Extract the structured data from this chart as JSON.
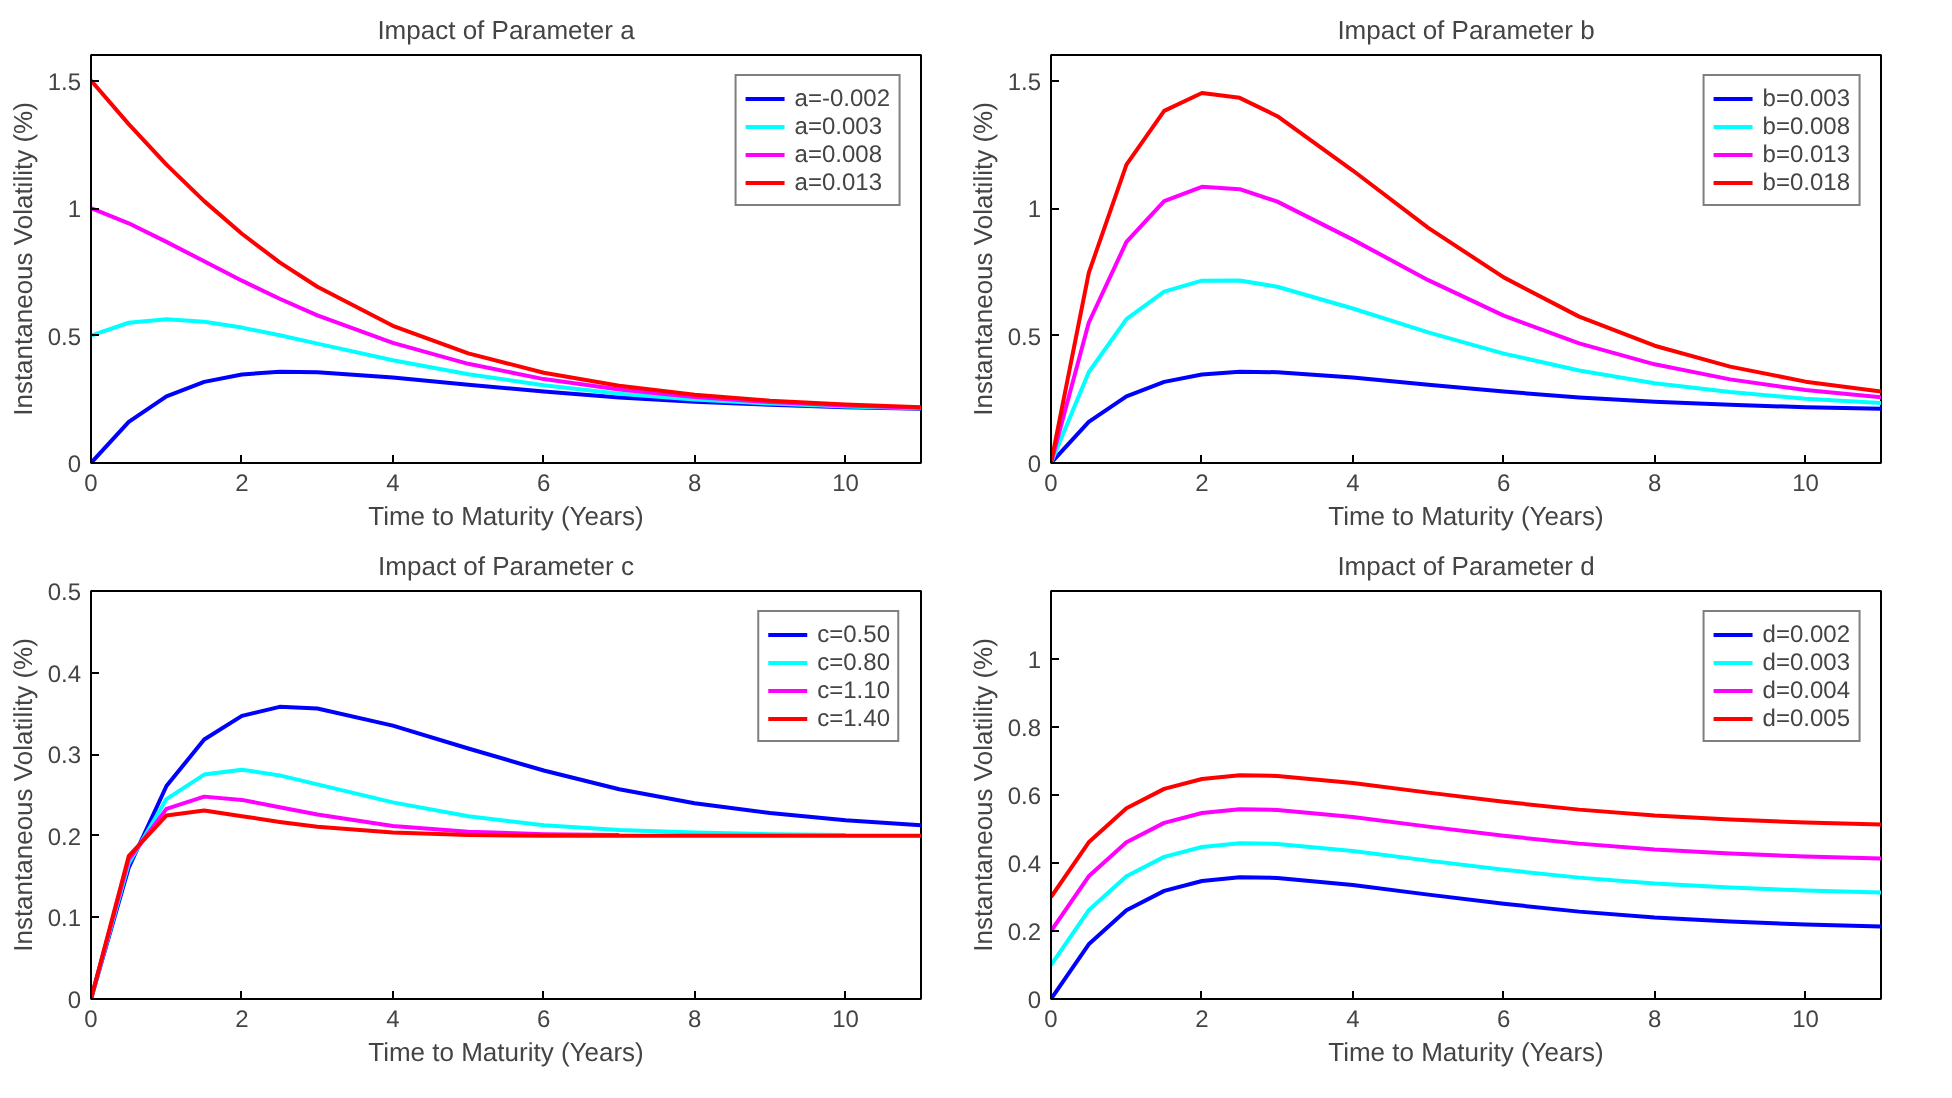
{
  "chart_data": [
    {
      "type": "line",
      "title": "Impact of Parameter a",
      "xlabel": "Time to Maturity (Years)",
      "ylabel": "Instantaneous Volatility (%)",
      "x": [
        0,
        0.5,
        1,
        1.5,
        2,
        2.5,
        3,
        4,
        5,
        6,
        7,
        8,
        9,
        10,
        11
      ],
      "xlim": [
        0,
        11
      ],
      "xticks": [
        0,
        2,
        4,
        6,
        8,
        10
      ],
      "ylim": [
        0,
        1.6
      ],
      "yticks": [
        0,
        0.5,
        1,
        1.5
      ],
      "legend": "top right",
      "series": [
        {
          "name": "a=-0.002",
          "color": "#0000ff",
          "values": [
            0,
            0.161,
            0.261,
            0.318,
            0.347,
            0.358,
            0.356,
            0.335,
            0.307,
            0.28,
            0.257,
            0.24,
            0.228,
            0.219,
            0.213
          ]
        },
        {
          "name": "a=0.003",
          "color": "#00ffff",
          "values": [
            0.5,
            0.55,
            0.564,
            0.554,
            0.531,
            0.501,
            0.468,
            0.403,
            0.348,
            0.305,
            0.272,
            0.249,
            0.233,
            0.222,
            0.215
          ]
        },
        {
          "name": "a=0.008",
          "color": "#ff00ff",
          "values": [
            1.0,
            0.94,
            0.867,
            0.791,
            0.715,
            0.644,
            0.579,
            0.471,
            0.389,
            0.329,
            0.288,
            0.259,
            0.239,
            0.225,
            0.217
          ]
        },
        {
          "name": "a=0.013",
          "color": "#ff0000",
          "values": [
            1.5,
            1.329,
            1.17,
            1.027,
            0.899,
            0.787,
            0.691,
            0.538,
            0.43,
            0.354,
            0.303,
            0.268,
            0.244,
            0.229,
            0.219
          ]
        }
      ]
    },
    {
      "type": "line",
      "title": "Impact of Parameter b",
      "xlabel": "Time to Maturity (Years)",
      "ylabel": "Instantaneous Volatility (%)",
      "x": [
        0,
        0.5,
        1,
        1.5,
        2,
        2.5,
        3,
        4,
        5,
        6,
        7,
        8,
        9,
        10,
        11
      ],
      "xlim": [
        0,
        11
      ],
      "xticks": [
        0,
        2,
        4,
        6,
        8,
        10
      ],
      "ylim": [
        0,
        1.6
      ],
      "yticks": [
        0,
        0.5,
        1,
        1.5
      ],
      "legend": "top right",
      "series": [
        {
          "name": "b=0.003",
          "color": "#0000ff",
          "values": [
            0,
            0.161,
            0.261,
            0.318,
            0.347,
            0.358,
            0.356,
            0.335,
            0.307,
            0.28,
            0.257,
            0.24,
            0.228,
            0.219,
            0.213
          ]
        },
        {
          "name": "b=0.008",
          "color": "#00ffff",
          "values": [
            0,
            0.356,
            0.564,
            0.672,
            0.715,
            0.716,
            0.691,
            0.606,
            0.512,
            0.429,
            0.363,
            0.313,
            0.278,
            0.252,
            0.235
          ]
        },
        {
          "name": "b=0.013",
          "color": "#ff00ff",
          "values": [
            0,
            0.55,
            0.867,
            1.027,
            1.083,
            1.074,
            1.025,
            0.876,
            0.717,
            0.578,
            0.469,
            0.387,
            0.328,
            0.286,
            0.258
          ]
        },
        {
          "name": "b=0.018",
          "color": "#ff0000",
          "values": [
            0,
            0.745,
            1.17,
            1.381,
            1.451,
            1.432,
            1.36,
            1.147,
            0.922,
            0.728,
            0.574,
            0.46,
            0.378,
            0.319,
            0.28
          ]
        }
      ]
    },
    {
      "type": "line",
      "title": "Impact of Parameter c",
      "xlabel": "Time to Maturity (Years)",
      "ylabel": "Instantaneous Volatility (%)",
      "x": [
        0,
        0.5,
        1,
        1.5,
        2,
        2.5,
        3,
        4,
        5,
        6,
        7,
        8,
        9,
        10,
        11
      ],
      "xlim": [
        0,
        11
      ],
      "xticks": [
        0,
        2,
        4,
        6,
        8,
        10
      ],
      "ylim": [
        0,
        0.5
      ],
      "yticks": [
        0,
        0.1,
        0.2,
        0.3,
        0.4,
        0.5
      ],
      "legend": "top right",
      "series": [
        {
          "name": "c=0.50",
          "color": "#0000ff",
          "values": [
            0,
            0.161,
            0.261,
            0.318,
            0.347,
            0.358,
            0.356,
            0.335,
            0.307,
            0.28,
            0.257,
            0.24,
            0.228,
            0.219,
            0.213
          ]
        },
        {
          "name": "c=0.80",
          "color": "#00ffff",
          "values": [
            0,
            0.166,
            0.245,
            0.275,
            0.281,
            0.274,
            0.263,
            0.241,
            0.224,
            0.213,
            0.207,
            0.204,
            0.202,
            0.201,
            null
          ]
        },
        {
          "name": "c=1.10",
          "color": "#ff00ff",
          "values": [
            0,
            0.171,
            0.233,
            0.248,
            0.244,
            0.235,
            0.226,
            0.212,
            0.205,
            0.202,
            0.201,
            null,
            null,
            null,
            null
          ]
        },
        {
          "name": "c=1.40",
          "color": "#ff0000",
          "values": [
            0,
            0.175,
            0.225,
            0.231,
            0.224,
            0.217,
            0.211,
            0.204,
            0.201,
            0.2,
            0.2,
            0.2,
            0.2,
            0.2,
            0.2
          ]
        }
      ]
    },
    {
      "type": "line",
      "title": "Impact of Parameter d",
      "xlabel": "Time to Maturity (Years)",
      "ylabel": "Instantaneous Volatility (%)",
      "x": [
        0,
        0.5,
        1,
        1.5,
        2,
        2.5,
        3,
        4,
        5,
        6,
        7,
        8,
        9,
        10,
        11
      ],
      "xlim": [
        0,
        11
      ],
      "xticks": [
        0,
        2,
        4,
        6,
        8,
        10
      ],
      "ylim": [
        0,
        1.2
      ],
      "yticks": [
        0,
        0.2,
        0.4,
        0.6,
        0.8,
        1
      ],
      "legend": "top right",
      "series": [
        {
          "name": "d=0.002",
          "color": "#0000ff",
          "values": [
            0,
            0.161,
            0.261,
            0.318,
            0.347,
            0.358,
            0.356,
            0.335,
            0.307,
            0.28,
            0.257,
            0.24,
            0.228,
            0.219,
            0.213
          ]
        },
        {
          "name": "d=0.003",
          "color": "#00ffff",
          "values": [
            0.1,
            0.261,
            0.361,
            0.418,
            0.447,
            0.458,
            0.456,
            0.435,
            0.407,
            0.38,
            0.357,
            0.34,
            0.328,
            0.319,
            0.313
          ]
        },
        {
          "name": "d=0.004",
          "color": "#ff00ff",
          "values": [
            0.2,
            0.361,
            0.461,
            0.518,
            0.547,
            0.558,
            0.556,
            0.535,
            0.507,
            0.48,
            0.457,
            0.44,
            0.428,
            0.419,
            0.413
          ]
        },
        {
          "name": "d=0.005",
          "color": "#ff0000",
          "values": [
            0.3,
            0.461,
            0.561,
            0.618,
            0.647,
            0.658,
            0.656,
            0.635,
            0.607,
            0.58,
            0.557,
            0.54,
            0.528,
            0.519,
            0.513
          ]
        }
      ]
    }
  ]
}
